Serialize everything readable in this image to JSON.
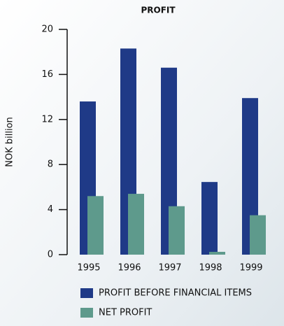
{
  "chart_data": {
    "type": "bar",
    "title": "PROFIT",
    "y_label": "NOK billion",
    "categories": [
      "1995",
      "1996",
      "1997",
      "1998",
      "1999"
    ],
    "series": [
      {
        "name": "PROFIT BEFORE FINANCIAL ITEMS",
        "color": "#1f3a87",
        "values": [
          13.6,
          18.3,
          16.6,
          6.45,
          13.9
        ]
      },
      {
        "name": "NET PROFIT",
        "color": "#5e9a8c",
        "values": [
          5.2,
          5.4,
          4.3,
          0.25,
          3.5
        ]
      }
    ],
    "ylim": [
      0,
      20
    ],
    "yticks": [
      0,
      4,
      8,
      12,
      16,
      20
    ],
    "grid": false
  }
}
